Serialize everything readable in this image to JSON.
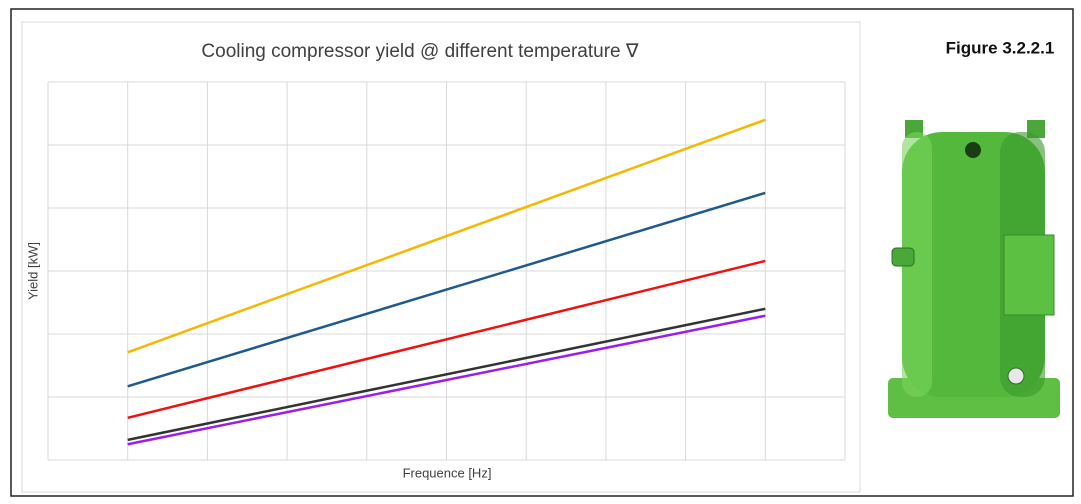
{
  "chart_data": {
    "type": "line",
    "title": "Cooling compressor yield @ different temperature ∇",
    "figure_label": "Figure 3.2.2.1",
    "x_label": "Frequence [Hz]",
    "y_label": "Yield [kW]",
    "x": [
      1,
      9
    ],
    "series": [
      {
        "color": "#f5b800",
        "values": [
          1.71,
          5.4
        ]
      },
      {
        "color": "#1f5a8c",
        "values": [
          1.17,
          4.24
        ]
      },
      {
        "color": "#ee1111",
        "values": [
          0.67,
          3.16
        ]
      },
      {
        "color": "#333333",
        "values": [
          0.32,
          2.4
        ]
      },
      {
        "color": "#9b1fe8",
        "values": [
          0.25,
          2.29
        ]
      }
    ],
    "xlim": [
      0,
      10
    ],
    "ylim": [
      0,
      6
    ],
    "xticks": [
      0,
      1,
      2,
      3,
      4,
      5,
      6,
      7,
      8,
      9,
      10
    ],
    "yticks": [
      0,
      1,
      2,
      3,
      4,
      5,
      6
    ],
    "tick_labels": false,
    "grid": true
  }
}
